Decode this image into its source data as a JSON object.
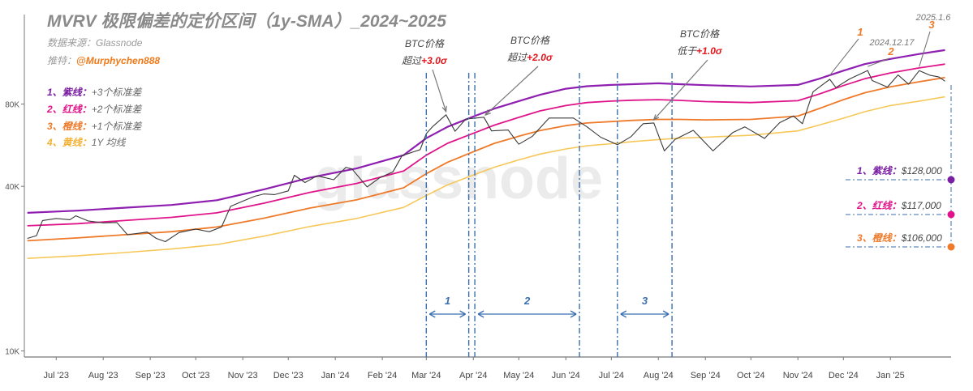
{
  "header": {
    "title": "MVRV 极限偏差的定价区间（1y-SMA）_2024~2025",
    "source_label": "数据来源：Glassnode",
    "author_label": "推特：",
    "author_handle": "@Murphychen888"
  },
  "legend": [
    {
      "key": "1、紫线：",
      "desc": "+3个标准差",
      "color": "#7a1fa2"
    },
    {
      "key": "2、红线：",
      "desc": "+2个标准差",
      "color": "#e0148a"
    },
    {
      "key": "3、橙线：",
      "desc": "+1个标准差",
      "color": "#ee7a2a"
    },
    {
      "key": "4、黄线：",
      "desc": "1Y 均线",
      "color": "#f4b234"
    }
  ],
  "watermark": "glassnode",
  "colors": {
    "price": "#3a3a3a",
    "purple": "#8e1fb0",
    "red": "#e0148a",
    "orange": "#ee7a2a",
    "yellow": "#f6c85a",
    "dash": "#3a6fb0",
    "annotation_red": "#e3161c",
    "annotation_orange": "#ee7a2a"
  },
  "chart_data": {
    "type": "line",
    "title": "MVRV 极限偏差的定价区间（1y-SMA）_2024~2025",
    "y_scale": "log",
    "ylim": [
      9500,
      170000
    ],
    "y_ticks": [
      {
        "value": 10000,
        "label": "10K"
      },
      {
        "value": 40000,
        "label": "40K"
      },
      {
        "value": 80000,
        "label": "80K"
      }
    ],
    "x_range": [
      "2023-06-10",
      "2025-02-10"
    ],
    "x_ticks": [
      {
        "date": "2023-07-01",
        "label": "Jul '23"
      },
      {
        "date": "2023-08-01",
        "label": "Aug '23"
      },
      {
        "date": "2023-09-01",
        "label": "Sep '23"
      },
      {
        "date": "2023-10-01",
        "label": "Oct '23"
      },
      {
        "date": "2023-11-01",
        "label": "Nov '23"
      },
      {
        "date": "2023-12-01",
        "label": "Dec '23"
      },
      {
        "date": "2024-01-01",
        "label": "Jan '24"
      },
      {
        "date": "2024-02-01",
        "label": "Feb '24"
      },
      {
        "date": "2024-03-01",
        "label": "Mar '24"
      },
      {
        "date": "2024-04-01",
        "label": "Apr '24"
      },
      {
        "date": "2024-05-01",
        "label": "May '24"
      },
      {
        "date": "2024-06-01",
        "label": "Jun '24"
      },
      {
        "date": "2024-07-01",
        "label": "Jul '24"
      },
      {
        "date": "2024-08-01",
        "label": "Aug '24"
      },
      {
        "date": "2024-09-01",
        "label": "Sep '24"
      },
      {
        "date": "2024-10-01",
        "label": "Oct '24"
      },
      {
        "date": "2024-11-01",
        "label": "Nov '24"
      },
      {
        "date": "2024-12-01",
        "label": "Dec '24"
      },
      {
        "date": "2025-01-01",
        "label": "Jan '25"
      }
    ],
    "series": [
      {
        "name": "+3个标准差",
        "color": "#8e1fb0",
        "points": [
          [
            "2023-06-12",
            32000
          ],
          [
            "2023-07-15",
            32600
          ],
          [
            "2023-08-15",
            33400
          ],
          [
            "2023-09-15",
            34200
          ],
          [
            "2023-10-15",
            35600
          ],
          [
            "2023-11-15",
            39000
          ],
          [
            "2023-12-15",
            43000
          ],
          [
            "2024-01-15",
            46500
          ],
          [
            "2024-02-15",
            52000
          ],
          [
            "2024-03-01",
            60000
          ],
          [
            "2024-03-15",
            66000
          ],
          [
            "2024-04-01",
            72000
          ],
          [
            "2024-04-15",
            77000
          ],
          [
            "2024-05-01",
            82000
          ],
          [
            "2024-05-15",
            86500
          ],
          [
            "2024-06-01",
            91000
          ],
          [
            "2024-06-15",
            93000
          ],
          [
            "2024-07-01",
            94000
          ],
          [
            "2024-07-15",
            94600
          ],
          [
            "2024-08-01",
            95300
          ],
          [
            "2024-08-15",
            94600
          ],
          [
            "2024-09-01",
            93800
          ],
          [
            "2024-10-01",
            92800
          ],
          [
            "2024-11-01",
            94000
          ],
          [
            "2024-11-15",
            99000
          ],
          [
            "2024-12-01",
            106000
          ],
          [
            "2024-12-15",
            112000
          ],
          [
            "2025-01-01",
            117000
          ],
          [
            "2025-01-20",
            122000
          ],
          [
            "2025-02-06",
            126000
          ]
        ]
      },
      {
        "name": "+2个标准差",
        "color": "#e0148a",
        "points": [
          [
            "2023-06-12",
            28700
          ],
          [
            "2023-07-15",
            29200
          ],
          [
            "2023-08-15",
            30000
          ],
          [
            "2023-09-15",
            30800
          ],
          [
            "2023-10-15",
            32000
          ],
          [
            "2023-11-15",
            34700
          ],
          [
            "2023-12-15",
            38000
          ],
          [
            "2024-01-15",
            41000
          ],
          [
            "2024-02-15",
            45500
          ],
          [
            "2024-03-01",
            52000
          ],
          [
            "2024-03-15",
            57500
          ],
          [
            "2024-04-01",
            62500
          ],
          [
            "2024-04-15",
            67000
          ],
          [
            "2024-05-01",
            71500
          ],
          [
            "2024-05-15",
            75500
          ],
          [
            "2024-06-01",
            79000
          ],
          [
            "2024-06-15",
            81000
          ],
          [
            "2024-07-01",
            82000
          ],
          [
            "2024-07-15",
            82600
          ],
          [
            "2024-08-01",
            83000
          ],
          [
            "2024-08-15",
            82500
          ],
          [
            "2024-09-01",
            81700
          ],
          [
            "2024-10-01",
            81000
          ],
          [
            "2024-11-01",
            82300
          ],
          [
            "2024-11-15",
            87000
          ],
          [
            "2024-12-01",
            93500
          ],
          [
            "2024-12-15",
            99000
          ],
          [
            "2025-01-01",
            104000
          ],
          [
            "2025-01-20",
            108500
          ],
          [
            "2025-02-06",
            112000
          ]
        ]
      },
      {
        "name": "+1个标准差",
        "color": "#ee7a2a",
        "points": [
          [
            "2023-06-12",
            25300
          ],
          [
            "2023-07-15",
            25900
          ],
          [
            "2023-08-15",
            26600
          ],
          [
            "2023-09-15",
            27300
          ],
          [
            "2023-10-15",
            28400
          ],
          [
            "2023-11-15",
            30600
          ],
          [
            "2023-12-15",
            33300
          ],
          [
            "2024-01-15",
            35700
          ],
          [
            "2024-02-15",
            39500
          ],
          [
            "2024-03-01",
            44500
          ],
          [
            "2024-03-15",
            49000
          ],
          [
            "2024-04-01",
            53500
          ],
          [
            "2024-04-15",
            57500
          ],
          [
            "2024-05-01",
            61000
          ],
          [
            "2024-05-15",
            64000
          ],
          [
            "2024-06-01",
            66700
          ],
          [
            "2024-06-15",
            68200
          ],
          [
            "2024-07-01",
            69000
          ],
          [
            "2024-07-15",
            69700
          ],
          [
            "2024-08-01",
            70300
          ],
          [
            "2024-08-15",
            70300
          ],
          [
            "2024-09-01",
            70000
          ],
          [
            "2024-10-01",
            70300
          ],
          [
            "2024-11-01",
            72300
          ],
          [
            "2024-11-15",
            77000
          ],
          [
            "2024-12-01",
            83000
          ],
          [
            "2024-12-15",
            88000
          ],
          [
            "2025-01-01",
            92500
          ],
          [
            "2025-01-20",
            96500
          ],
          [
            "2025-02-06",
            100000
          ]
        ]
      },
      {
        "name": "1Y 均线",
        "color": "#f6c85a",
        "points": [
          [
            "2023-06-12",
            21800
          ],
          [
            "2023-07-15",
            22300
          ],
          [
            "2023-08-15",
            22900
          ],
          [
            "2023-09-15",
            23600
          ],
          [
            "2023-10-15",
            24500
          ],
          [
            "2023-11-15",
            26300
          ],
          [
            "2023-12-15",
            28500
          ],
          [
            "2024-01-15",
            30500
          ],
          [
            "2024-02-15",
            33500
          ],
          [
            "2024-03-01",
            37000
          ],
          [
            "2024-03-15",
            40500
          ],
          [
            "2024-04-01",
            44000
          ],
          [
            "2024-04-15",
            47000
          ],
          [
            "2024-05-01",
            50000
          ],
          [
            "2024-05-15",
            52500
          ],
          [
            "2024-06-01",
            54800
          ],
          [
            "2024-06-15",
            56300
          ],
          [
            "2024-07-01",
            57300
          ],
          [
            "2024-07-15",
            58300
          ],
          [
            "2024-08-01",
            59300
          ],
          [
            "2024-08-15",
            60000
          ],
          [
            "2024-09-01",
            60500
          ],
          [
            "2024-10-01",
            61500
          ],
          [
            "2024-11-01",
            63800
          ],
          [
            "2024-11-15",
            67000
          ],
          [
            "2024-12-01",
            71000
          ],
          [
            "2024-12-15",
            75000
          ],
          [
            "2025-01-01",
            79000
          ],
          [
            "2025-01-20",
            82000
          ],
          [
            "2025-02-06",
            85000
          ]
        ]
      },
      {
        "name": "BTC",
        "color": "#3a3a3a",
        "points": [
          [
            "2023-06-12",
            25800
          ],
          [
            "2023-06-18",
            26400
          ],
          [
            "2023-06-22",
            30000
          ],
          [
            "2023-07-01",
            30500
          ],
          [
            "2023-07-10",
            30200
          ],
          [
            "2023-07-14",
            31200
          ],
          [
            "2023-07-22",
            29900
          ],
          [
            "2023-08-01",
            29400
          ],
          [
            "2023-08-10",
            29500
          ],
          [
            "2023-08-17",
            26600
          ],
          [
            "2023-08-30",
            27200
          ],
          [
            "2023-09-05",
            25800
          ],
          [
            "2023-09-11",
            25100
          ],
          [
            "2023-09-20",
            27100
          ],
          [
            "2023-10-01",
            27900
          ],
          [
            "2023-10-10",
            27300
          ],
          [
            "2023-10-18",
            28400
          ],
          [
            "2023-10-24",
            33800
          ],
          [
            "2023-11-01",
            35300
          ],
          [
            "2023-11-09",
            36800
          ],
          [
            "2023-11-15",
            37500
          ],
          [
            "2023-11-22",
            37300
          ],
          [
            "2023-12-01",
            38500
          ],
          [
            "2023-12-05",
            43900
          ],
          [
            "2023-12-12",
            41300
          ],
          [
            "2023-12-20",
            43700
          ],
          [
            "2023-12-31",
            42300
          ],
          [
            "2024-01-08",
            46900
          ],
          [
            "2024-01-12",
            46300
          ],
          [
            "2024-01-22",
            39800
          ],
          [
            "2024-01-30",
            42900
          ],
          [
            "2024-02-08",
            45200
          ],
          [
            "2024-02-14",
            51800
          ],
          [
            "2024-02-26",
            54500
          ],
          [
            "2024-03-01",
            62400
          ],
          [
            "2024-03-05",
            66000
          ],
          [
            "2024-03-14",
            73100
          ],
          [
            "2024-03-20",
            63600
          ],
          [
            "2024-03-27",
            70500
          ],
          [
            "2024-04-08",
            71600
          ],
          [
            "2024-04-13",
            63800
          ],
          [
            "2024-04-24",
            64300
          ],
          [
            "2024-05-01",
            57000
          ],
          [
            "2024-05-10",
            61000
          ],
          [
            "2024-05-21",
            71100
          ],
          [
            "2024-06-06",
            71100
          ],
          [
            "2024-06-15",
            66000
          ],
          [
            "2024-06-24",
            60500
          ],
          [
            "2024-07-05",
            56800
          ],
          [
            "2024-07-14",
            60800
          ],
          [
            "2024-07-22",
            67800
          ],
          [
            "2024-07-29",
            68200
          ],
          [
            "2024-08-05",
            53900
          ],
          [
            "2024-08-12",
            59400
          ],
          [
            "2024-08-24",
            64100
          ],
          [
            "2024-09-06",
            53900
          ],
          [
            "2024-09-19",
            62900
          ],
          [
            "2024-09-27",
            66000
          ],
          [
            "2024-10-10",
            59900
          ],
          [
            "2024-10-20",
            68400
          ],
          [
            "2024-10-29",
            72400
          ],
          [
            "2024-11-04",
            67800
          ],
          [
            "2024-11-11",
            88700
          ],
          [
            "2024-11-22",
            98500
          ],
          [
            "2024-11-26",
            91900
          ],
          [
            "2024-12-05",
            98800
          ],
          [
            "2024-12-17",
            106100
          ],
          [
            "2024-12-20",
            97500
          ],
          [
            "2024-12-30",
            92300
          ],
          [
            "2025-01-06",
            102200
          ],
          [
            "2025-01-13",
            94500
          ],
          [
            "2025-01-20",
            106000
          ],
          [
            "2025-01-27",
            102000
          ],
          [
            "2025-02-02",
            100500
          ],
          [
            "2025-02-06",
            97000
          ]
        ]
      }
    ],
    "periods": [
      {
        "label": "1",
        "start": "2024-03-01",
        "end": "2024-03-29"
      },
      {
        "label": "2",
        "start": "2024-04-02",
        "end": "2024-06-10"
      },
      {
        "label": "3",
        "start": "2024-07-05",
        "end": "2024-08-10"
      }
    ],
    "annotations": [
      {
        "l1": "BTC价格",
        "l2a": "超过",
        "l2b": "+3.0σ",
        "date": "2024-03-14",
        "value": 73100
      },
      {
        "l1": "BTC价格",
        "l2a": "超过",
        "l2b": "+2.0σ",
        "date": "2024-04-09",
        "value": 71000
      },
      {
        "l1": "BTC价格",
        "l2a": "低于",
        "l2b": "+1.0σ",
        "date": "2024-07-29",
        "value": 68200
      }
    ],
    "events": [
      {
        "label": "1",
        "date": "2024-11-22",
        "value": 98500
      },
      {
        "label": "2",
        "date": "2024-12-17",
        "value": 106100
      },
      {
        "label": "3",
        "date": "2025-01-20",
        "value": 106000
      }
    ],
    "event_dates": [
      {
        "label": "2024.12.17"
      },
      {
        "label": "2025.1.6"
      }
    ],
    "right_labels": [
      {
        "text": "1、紫线：",
        "value": "$128,000",
        "price": 128000,
        "color": "#7a1fa2"
      },
      {
        "text": "2、红线：",
        "value": "$117,000",
        "price": 117000,
        "color": "#e0148a"
      },
      {
        "text": "3、橙线：",
        "value": "$106,000",
        "price": 106000,
        "color": "#ee7a2a"
      }
    ]
  }
}
